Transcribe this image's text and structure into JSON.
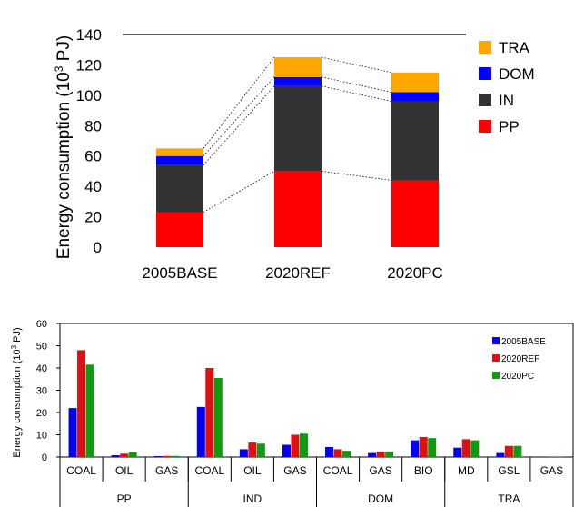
{
  "chart_data": [
    {
      "type": "bar",
      "stacked": true,
      "ylabel": "Energy consumption (10^3 PJ)",
      "ylabel_parts": {
        "main": "Energy consumption (10",
        "sup": "3",
        "unit": " PJ)"
      },
      "categories": [
        "2005BASE",
        "2020REF",
        "2020PC"
      ],
      "series": [
        {
          "name": "PP",
          "color": "#ff0000",
          "values": [
            23,
            50,
            44
          ]
        },
        {
          "name": "IN",
          "color": "#333333",
          "values": [
            31,
            56,
            52
          ]
        },
        {
          "name": "DOM",
          "color": "#0000ff",
          "values": [
            6,
            6,
            6
          ]
        },
        {
          "name": "TRA",
          "color": "#ffa500",
          "values": [
            5,
            13,
            13
          ]
        }
      ],
      "legend_order": [
        "TRA",
        "DOM",
        "IN",
        "PP"
      ],
      "legend_position": "right",
      "ylim": [
        0,
        140
      ],
      "yticks": [
        0,
        20,
        40,
        60,
        80,
        100,
        120,
        140
      ],
      "connector_lines": true
    },
    {
      "type": "bar",
      "grouped": true,
      "ylabel": "Energy consumption (10^3 PJ)",
      "ylabel_parts": {
        "main": "Energy consumption (10",
        "sup": "3",
        "unit": " PJ)"
      },
      "categories": [
        "COAL",
        "OIL",
        "GAS",
        "COAL",
        "OIL",
        "GAS",
        "COAL",
        "GAS",
        "BIO",
        "MD",
        "GSL",
        "GAS"
      ],
      "groups": [
        {
          "label": "PP",
          "span": 3
        },
        {
          "label": "IND",
          "span": 3
        },
        {
          "label": "DOM",
          "span": 3
        },
        {
          "label": "TRA",
          "span": 3
        }
      ],
      "series": [
        {
          "name": "2005BASE",
          "color": "#0000ee",
          "values": [
            22,
            0.8,
            0.4,
            22.5,
            3.5,
            5.5,
            4.5,
            1.8,
            7.5,
            4.2,
            1.8,
            0
          ]
        },
        {
          "name": "2020REF",
          "color": "#dd1111",
          "values": [
            48,
            1.5,
            0.5,
            40,
            6.5,
            10,
            3.5,
            2.5,
            9,
            8,
            5,
            0.1
          ]
        },
        {
          "name": "2020PC",
          "color": "#119911",
          "values": [
            41.5,
            2.2,
            0.5,
            35.5,
            6,
            10.5,
            2.8,
            2.5,
            8.5,
            7.5,
            5,
            0.1
          ]
        }
      ],
      "legend_position": "top-right",
      "ylim": [
        0,
        60
      ],
      "yticks": [
        0,
        10,
        20,
        30,
        40,
        50,
        60
      ]
    }
  ]
}
